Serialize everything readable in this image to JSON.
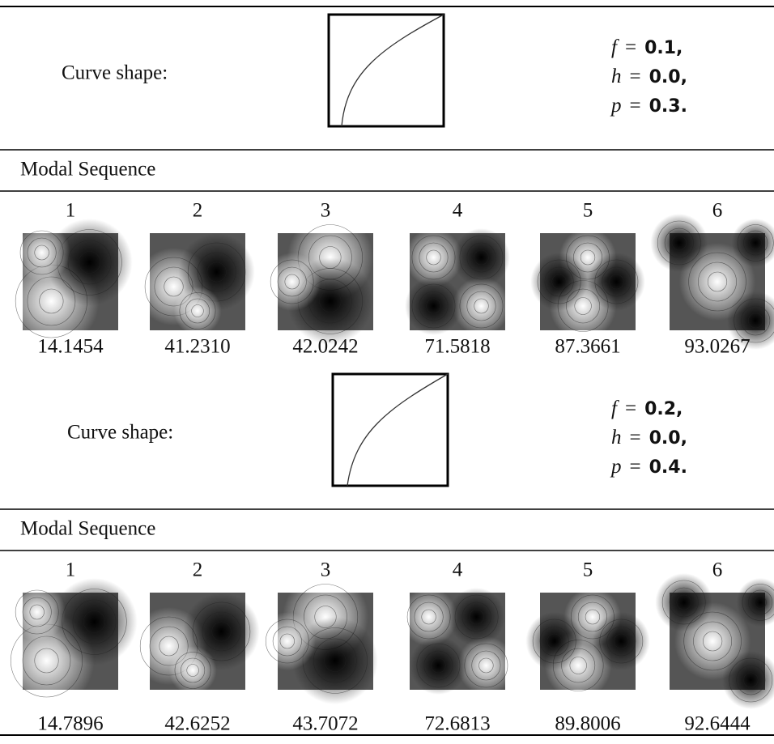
{
  "sections": [
    {
      "curve_label": "Curve shape:",
      "params": [
        {
          "symbol": "f",
          "relation": "=",
          "value": "0.1,"
        },
        {
          "symbol": "h",
          "relation": "=",
          "value": "0.0,"
        },
        {
          "symbol": "p",
          "relation": "=",
          "value": "0.3."
        }
      ],
      "sequence_title": "Modal Sequence",
      "modes": [
        "1",
        "2",
        "3",
        "4",
        "5",
        "6"
      ],
      "frequencies": [
        "14.1454",
        "41.2310",
        "42.0242",
        "71.5818",
        "87.3661",
        "93.0267"
      ]
    },
    {
      "curve_label": "Curve shape:",
      "params": [
        {
          "symbol": "f",
          "relation": "=",
          "value": "0.2,"
        },
        {
          "symbol": "h",
          "relation": "=",
          "value": "0.0,"
        },
        {
          "symbol": "p",
          "relation": "=",
          "value": "0.4."
        }
      ],
      "sequence_title": "Modal Sequence",
      "modes": [
        "1",
        "2",
        "3",
        "4",
        "5",
        "6"
      ],
      "frequencies": [
        "14.7896",
        "42.6252",
        "43.7072",
        "72.6813",
        "89.8006",
        "92.6444"
      ]
    }
  ]
}
